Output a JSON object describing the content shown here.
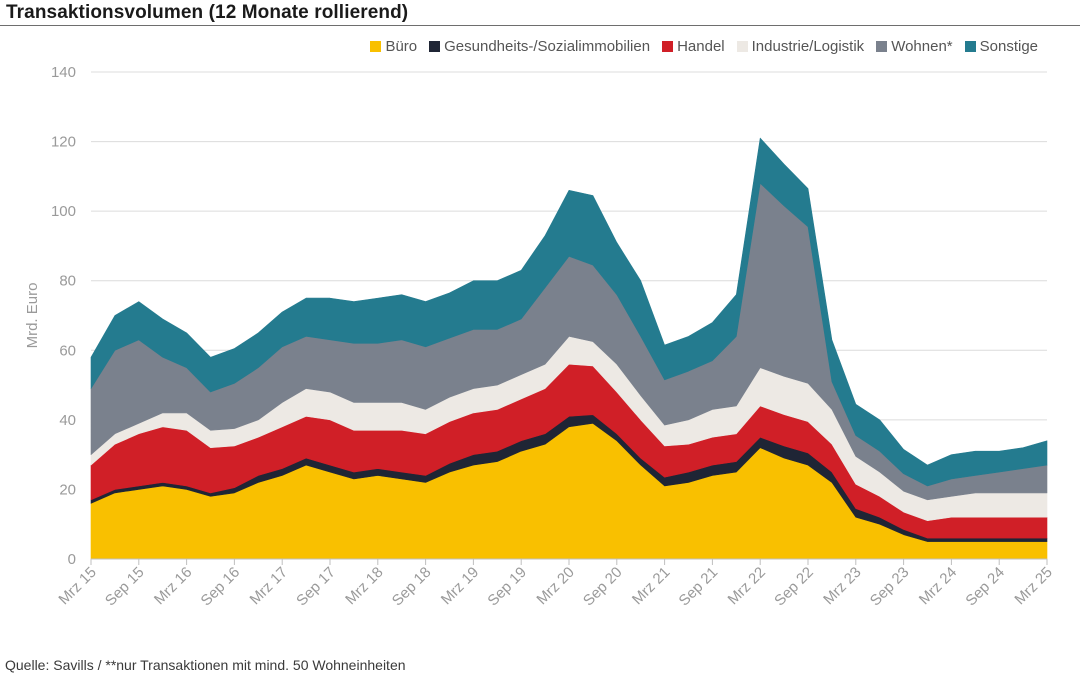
{
  "chart_data": {
    "type": "area",
    "stacked": true,
    "title": "Transaktionsvolumen (12 Monate rollierend)",
    "ylabel": "Mrd. Euro",
    "xlabel": "",
    "ylim": [
      0,
      140
    ],
    "yticks": [
      0,
      20,
      40,
      60,
      80,
      100,
      120,
      140
    ],
    "grid": true,
    "legend_position": "top-right",
    "x_tick_labels": [
      "Mrz 15",
      "Sep 15",
      "Mrz 16",
      "Sep 16",
      "Mrz 17",
      "Sep 17",
      "Mrz 18",
      "Sep 18",
      "Mrz 19",
      "Sep 19",
      "Mrz 20",
      "Sep 20",
      "Mrz 21",
      "Sep 21",
      "Mrz 22",
      "Sep 22",
      "Mrz 23",
      "Sep 23",
      "Mrz 24",
      "Sep 24",
      "Mrz 25"
    ],
    "x_tick_months": [
      0,
      6,
      12,
      18,
      24,
      30,
      36,
      42,
      48,
      54,
      60,
      66,
      72,
      78,
      84,
      90,
      96,
      102,
      108,
      114,
      120
    ],
    "x_months": [
      0,
      3,
      6,
      9,
      12,
      15,
      18,
      21,
      24,
      27,
      30,
      33,
      36,
      39,
      42,
      45,
      48,
      51,
      54,
      57,
      60,
      63,
      66,
      69,
      72,
      75,
      78,
      81,
      84,
      87,
      90,
      93,
      96,
      99,
      102,
      105,
      108,
      111,
      114,
      117,
      120
    ],
    "series": [
      {
        "name": "Büro",
        "color": "#f9c000",
        "values": [
          16,
          19,
          20,
          21,
          20,
          18,
          19,
          22,
          24,
          27,
          25,
          23,
          24,
          23,
          22,
          25,
          27,
          28,
          31,
          33,
          38,
          39,
          34,
          27,
          21,
          22,
          24,
          25,
          32,
          29,
          27,
          22,
          12,
          10,
          7,
          5,
          5,
          5,
          5,
          5,
          5
        ]
      },
      {
        "name": "Gesundheits-/Sozialimmobilien",
        "color": "#1f2535",
        "values": [
          1,
          1,
          1,
          1,
          1,
          1,
          1.5,
          2,
          2,
          2,
          2,
          2,
          2,
          2,
          2,
          2.5,
          3,
          3,
          3,
          3,
          3,
          2.5,
          2,
          2,
          2.5,
          3,
          3,
          3,
          3,
          3.5,
          3.5,
          3,
          2.5,
          2,
          1.5,
          1,
          1,
          1,
          1,
          1,
          1
        ]
      },
      {
        "name": "Handel",
        "color": "#d01f27",
        "values": [
          10,
          13,
          15,
          16,
          16,
          13,
          12,
          11,
          12,
          12,
          13,
          12,
          11,
          12,
          12,
          12,
          12,
          12,
          12,
          13,
          15,
          14,
          12,
          11,
          9,
          8,
          8,
          8,
          9,
          9,
          9,
          8,
          7,
          6,
          5,
          5,
          6,
          6,
          6,
          6,
          6
        ]
      },
      {
        "name": "Industrie/Logistik",
        "color": "#ede9e4",
        "values": [
          3,
          3,
          3,
          4,
          5,
          5,
          5,
          5,
          7,
          8,
          8,
          8,
          8,
          8,
          7,
          7,
          7,
          7,
          7,
          7,
          8,
          7,
          8,
          7,
          6,
          7,
          8,
          8,
          11,
          11,
          11,
          10,
          8,
          7,
          6,
          6,
          6,
          7,
          7,
          7,
          7
        ]
      },
      {
        "name": "Wohnen*",
        "color": "#7a818d",
        "values": [
          19,
          24,
          24,
          16,
          13,
          11,
          13,
          15,
          16,
          15,
          15,
          17,
          17,
          18,
          18,
          17,
          17,
          16,
          16,
          22,
          23,
          22,
          20,
          17,
          13,
          14,
          14,
          20,
          53,
          49,
          45,
          8,
          6,
          6,
          5,
          4,
          5,
          5,
          6,
          7,
          8
        ]
      },
      {
        "name": "Sonstige",
        "color": "#247b8f",
        "values": [
          9,
          10,
          11,
          11,
          10,
          10,
          10,
          10,
          10,
          11,
          12,
          12,
          13,
          13,
          13,
          13,
          14,
          14,
          14,
          15,
          19,
          20,
          15,
          16,
          10,
          10,
          11,
          12,
          13,
          12,
          11,
          12,
          9,
          9,
          7,
          6,
          7,
          7,
          6,
          6,
          7
        ]
      }
    ]
  },
  "footer": {
    "source": "Quelle: Savills / **nur Transaktionen mit mind. 50 Wohneinheiten"
  }
}
